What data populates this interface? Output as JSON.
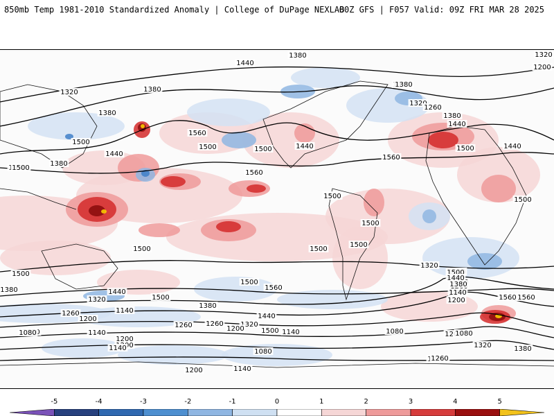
{
  "header": {
    "left_title": "850mb Temp 1981-2010 Standardized Anomaly | College of DuPage NEXLAB",
    "right_title": "00Z GFS | F057 Valid: 09Z FRI MAR 28 2025"
  },
  "map": {
    "contour_labels": [
      "1380",
      "1320",
      "1440",
      "1380",
      "1320",
      "1200",
      "1380",
      "1320",
      "1260",
      "1380",
      "1440",
      "1500",
      "1440",
      "1380",
      "1560",
      "1500",
      "1440",
      "1380",
      "1380",
      "1500",
      "1500",
      "1440",
      "1500",
      "1560",
      "1500",
      "1560",
      "1440",
      "1500",
      "1500",
      "1500",
      "1500",
      "1500",
      "1500",
      "1500",
      "1500",
      "1560",
      "1500",
      "1500",
      "1560",
      "1500",
      "1380",
      "1440",
      "1320",
      "1260",
      "1200",
      "1140",
      "1380",
      "1440",
      "1320",
      "1260",
      "1200",
      "1260",
      "1140",
      "1080",
      "1200",
      "1140",
      "1080",
      "1200",
      "1140",
      "1080",
      "1320",
      "1260",
      "1200",
      "1080",
      "1380",
      "1200",
      "1140",
      "1260",
      "1380",
      "1320",
      "1500",
      "1380",
      "1440",
      "1560",
      "1500",
      "1200",
      "1260",
      "1140",
      "1080"
    ],
    "colors": {
      "land_outline": "#111111",
      "contour": "#000000",
      "warm_light": "#f6d6d6",
      "warm_mid": "#ee9a9a",
      "warm_strong": "#d42a2a",
      "warm_extreme": "#8a0a0a",
      "warm_peak": "#ffd400",
      "cool_light": "#d3e2f3",
      "cool_mid": "#8fb6e2",
      "cool_strong": "#3f7fc8"
    }
  },
  "colorbar": {
    "tick_labels": [
      "-5",
      "-4",
      "-3",
      "-2",
      "-1",
      "0",
      "1",
      "2",
      "3",
      "4",
      "5"
    ],
    "colors": [
      "#7a52b8",
      "#27407e",
      "#2f68b0",
      "#4d8fd0",
      "#8fb6e2",
      "#cfe0f2",
      "#ffffff",
      "#f6d6d6",
      "#ee9a9a",
      "#d63c3c",
      "#9a0f0f",
      "#f2c21b"
    ]
  }
}
